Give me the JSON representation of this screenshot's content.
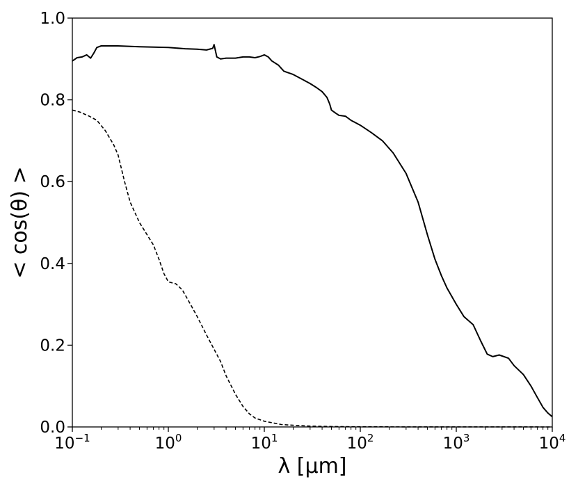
{
  "chart_data": {
    "type": "line",
    "title": "",
    "xlabel": "λ [μm]",
    "ylabel": "< cos(θ) >",
    "xscale": "log",
    "xlim": [
      0.1,
      10000
    ],
    "ylim": [
      0.0,
      1.0
    ],
    "grid": false,
    "legend": "none",
    "x_ticks": [
      {
        "base": "10",
        "exp": "−1",
        "value": 0.1
      },
      {
        "base": "10",
        "exp": "0",
        "value": 1
      },
      {
        "base": "10",
        "exp": "1",
        "value": 10
      },
      {
        "base": "10",
        "exp": "2",
        "value": 100
      },
      {
        "base": "10",
        "exp": "3",
        "value": 1000
      },
      {
        "base": "10",
        "exp": "4",
        "value": 10000
      }
    ],
    "y_ticks": [
      "0.0",
      "0.2",
      "0.4",
      "0.6",
      "0.8",
      "1.0"
    ],
    "series": [
      {
        "style": "solid",
        "color": "#000000",
        "points": [
          [
            0.1,
            0.895
          ],
          [
            0.112,
            0.903
          ],
          [
            0.126,
            0.905
          ],
          [
            0.141,
            0.91
          ],
          [
            0.155,
            0.902
          ],
          [
            0.168,
            0.915
          ],
          [
            0.18,
            0.928
          ],
          [
            0.2,
            0.932
          ],
          [
            0.25,
            0.932
          ],
          [
            0.3,
            0.932
          ],
          [
            0.5,
            0.93
          ],
          [
            1.0,
            0.928
          ],
          [
            1.5,
            0.925
          ],
          [
            2.0,
            0.924
          ],
          [
            2.5,
            0.922
          ],
          [
            2.9,
            0.926
          ],
          [
            3.0,
            0.935
          ],
          [
            3.2,
            0.905
          ],
          [
            3.5,
            0.9
          ],
          [
            4.0,
            0.902
          ],
          [
            5.0,
            0.902
          ],
          [
            6.0,
            0.905
          ],
          [
            7.0,
            0.905
          ],
          [
            8.0,
            0.903
          ],
          [
            9.0,
            0.906
          ],
          [
            10.0,
            0.91
          ],
          [
            11.0,
            0.905
          ],
          [
            12.0,
            0.895
          ],
          [
            14.0,
            0.885
          ],
          [
            16.0,
            0.87
          ],
          [
            20.0,
            0.862
          ],
          [
            25.0,
            0.85
          ],
          [
            30.0,
            0.84
          ],
          [
            35.0,
            0.83
          ],
          [
            40.0,
            0.82
          ],
          [
            45.0,
            0.806
          ],
          [
            48.0,
            0.79
          ],
          [
            50.0,
            0.775
          ],
          [
            55.0,
            0.768
          ],
          [
            60.0,
            0.762
          ],
          [
            70.0,
            0.76
          ],
          [
            80.0,
            0.75
          ],
          [
            100.0,
            0.738
          ],
          [
            130.0,
            0.72
          ],
          [
            170.0,
            0.7
          ],
          [
            220.0,
            0.67
          ],
          [
            300.0,
            0.62
          ],
          [
            400.0,
            0.55
          ],
          [
            500.0,
            0.47
          ],
          [
            600.0,
            0.41
          ],
          [
            700.0,
            0.37
          ],
          [
            800.0,
            0.34
          ],
          [
            1000.0,
            0.3
          ],
          [
            1200.0,
            0.27
          ],
          [
            1500.0,
            0.25
          ],
          [
            1800.0,
            0.21
          ],
          [
            2100.0,
            0.178
          ],
          [
            2400.0,
            0.172
          ],
          [
            2800.0,
            0.176
          ],
          [
            3500.0,
            0.168
          ],
          [
            4000.0,
            0.15
          ],
          [
            5000.0,
            0.128
          ],
          [
            6000.0,
            0.1
          ],
          [
            7000.0,
            0.072
          ],
          [
            8000.0,
            0.048
          ],
          [
            9000.0,
            0.034
          ],
          [
            10000.0,
            0.025
          ]
        ]
      },
      {
        "style": "dashed",
        "color": "#000000",
        "points": [
          [
            0.1,
            0.775
          ],
          [
            0.12,
            0.77
          ],
          [
            0.15,
            0.76
          ],
          [
            0.18,
            0.75
          ],
          [
            0.22,
            0.725
          ],
          [
            0.27,
            0.69
          ],
          [
            0.3,
            0.665
          ],
          [
            0.35,
            0.6
          ],
          [
            0.4,
            0.55
          ],
          [
            0.5,
            0.5
          ],
          [
            0.7,
            0.445
          ],
          [
            0.8,
            0.41
          ],
          [
            0.9,
            0.375
          ],
          [
            1.0,
            0.355
          ],
          [
            1.2,
            0.35
          ],
          [
            1.4,
            0.335
          ],
          [
            1.7,
            0.3
          ],
          [
            2.0,
            0.27
          ],
          [
            2.5,
            0.225
          ],
          [
            3.0,
            0.19
          ],
          [
            3.5,
            0.16
          ],
          [
            4.0,
            0.125
          ],
          [
            5.0,
            0.08
          ],
          [
            6.0,
            0.05
          ],
          [
            7.0,
            0.032
          ],
          [
            8.0,
            0.022
          ],
          [
            10.0,
            0.014
          ],
          [
            15.0,
            0.006
          ],
          [
            20.0,
            0.004
          ],
          [
            30.0,
            0.002
          ],
          [
            50.0,
            0.001
          ],
          [
            100.0,
            0.0004
          ],
          [
            300.0,
            0.0002
          ],
          [
            1000.0,
            0.0001
          ],
          [
            10000.0,
            0.0
          ]
        ]
      }
    ]
  }
}
